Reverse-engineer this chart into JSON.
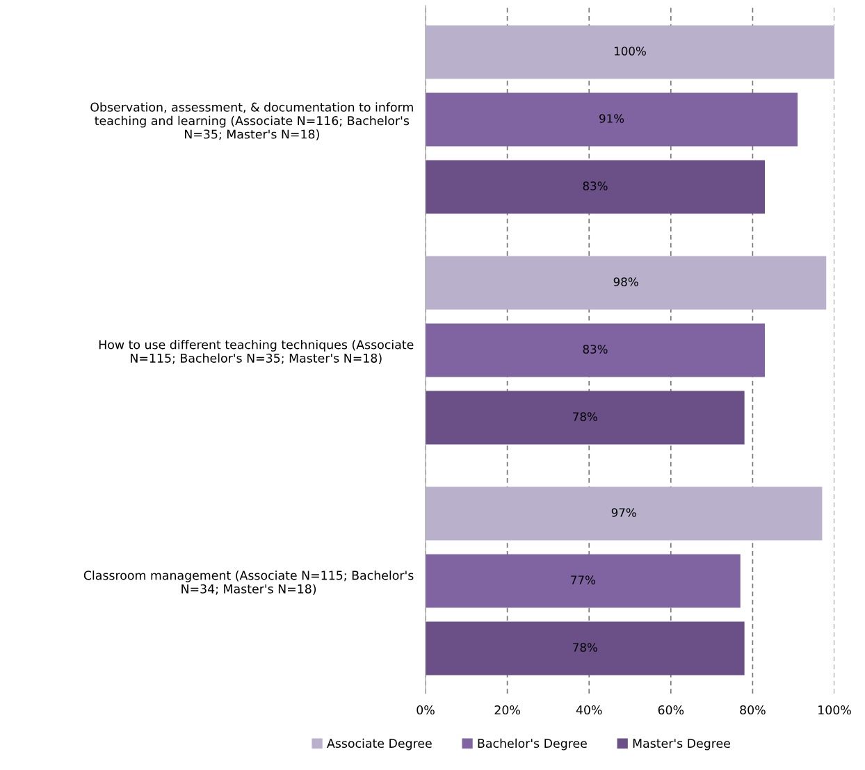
{
  "chart_data": {
    "type": "bar",
    "orientation": "horizontal",
    "categories": [
      "Observation, assessment, & documentation to inform teaching and learning (Associate N=116; Bachelor's N=35; Master's N=18)",
      "How to use different teaching techniques (Associate N=115; Bachelor's N=35; Master's N=18)",
      "Classroom management (Associate N=115; Bachelor's N=34; Master's N=18)"
    ],
    "series": [
      {
        "name": "Associate Degree",
        "color": "#b9b0cb",
        "values": [
          100,
          98,
          97
        ],
        "value_labels": [
          "100%",
          "98%",
          "97%"
        ]
      },
      {
        "name": "Bachelor's Degree",
        "color": "#8064a2",
        "values": [
          91,
          83,
          77
        ],
        "value_labels": [
          "91%",
          "83%",
          "77%"
        ]
      },
      {
        "name": "Master's Degree",
        "color": "#6a5087",
        "values": [
          83,
          78,
          78
        ],
        "value_labels": [
          "83%",
          "78%",
          "78%"
        ]
      }
    ],
    "xlim": [
      0,
      100
    ],
    "xticks": [
      {
        "value": 0,
        "label": "0%"
      },
      {
        "value": 20,
        "label": "20%"
      },
      {
        "value": 40,
        "label": "40%"
      },
      {
        "value": 60,
        "label": "60%"
      },
      {
        "value": 80,
        "label": "80%"
      },
      {
        "value": 100,
        "label": "100%"
      }
    ],
    "grid": "x",
    "line_style": "dashed",
    "legend": "bottom"
  }
}
